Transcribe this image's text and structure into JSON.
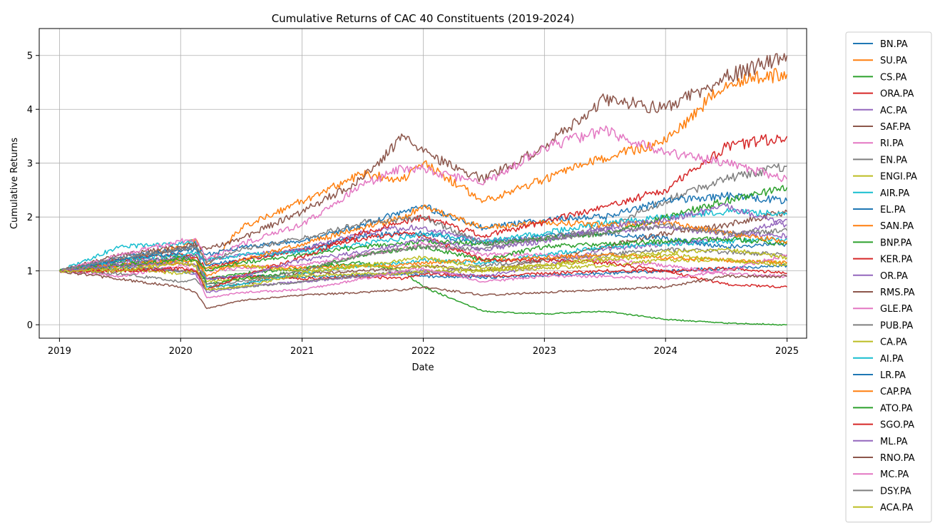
{
  "chart_data": {
    "type": "line",
    "title": "Cumulative Returns of CAC 40 Constituents (2019-2024)",
    "xlabel": "Date",
    "ylabel": "Cumulative Returns",
    "xlim": [
      "2018-11-01",
      "2025-03-01"
    ],
    "ylim": [
      -0.25,
      5.5
    ],
    "x_ticks": [
      "2019-01-01",
      "2020-01-01",
      "2021-01-01",
      "2022-01-01",
      "2023-01-01",
      "2024-01-01",
      "2025-01-01"
    ],
    "x_tick_labels": [
      "2019",
      "2020",
      "2021",
      "2022",
      "2023",
      "2024",
      "2025"
    ],
    "y_ticks": [
      0,
      1,
      2,
      3,
      4,
      5
    ],
    "grid": true,
    "legend_position": "outside-right",
    "x": [
      "2019-01-01",
      "2019-07-01",
      "2020-01-01",
      "2020-02-15",
      "2020-03-20",
      "2020-07-01",
      "2021-01-01",
      "2021-07-01",
      "2021-11-01",
      "2022-01-01",
      "2022-07-01",
      "2023-01-01",
      "2023-07-01",
      "2024-01-01",
      "2024-07-01",
      "2025-01-01"
    ],
    "series": [
      {
        "name": "BN.PA",
        "color": "#1f77b4",
        "values": [
          1.0,
          1.05,
          1.0,
          0.95,
          0.85,
          0.9,
          0.88,
          0.92,
          0.95,
          0.9,
          0.88,
          0.92,
          0.95,
          1.0,
          1.05,
          1.1
        ]
      },
      {
        "name": "SU.PA",
        "color": "#ff7f0e",
        "values": [
          1.0,
          1.2,
          1.45,
          1.6,
          1.1,
          1.8,
          2.3,
          2.8,
          2.7,
          3.0,
          2.3,
          2.7,
          3.1,
          3.4,
          4.5,
          4.65
        ]
      },
      {
        "name": "CS.PA",
        "color": "#2ca02c",
        "values": [
          1.0,
          1.15,
          1.25,
          1.3,
          0.85,
          0.95,
          1.05,
          1.15,
          1.0,
          0.7,
          0.25,
          0.2,
          0.25,
          0.1,
          0.03,
          0.0
        ]
      },
      {
        "name": "ORA.PA",
        "color": "#d62728",
        "values": [
          1.0,
          1.0,
          1.0,
          1.0,
          0.85,
          0.9,
          0.85,
          0.9,
          0.85,
          0.95,
          0.9,
          0.95,
          1.0,
          1.0,
          1.05,
          0.95
        ]
      },
      {
        "name": "AC.PA",
        "color": "#9467bd",
        "values": [
          1.0,
          1.1,
          1.0,
          0.95,
          0.6,
          0.7,
          0.8,
          0.9,
          0.95,
          1.0,
          0.9,
          1.1,
          1.4,
          1.5,
          1.6,
          1.95
        ]
      },
      {
        "name": "SAF.PA",
        "color": "#8c564b",
        "values": [
          1.0,
          1.2,
          1.4,
          1.5,
          0.7,
          0.75,
          0.95,
          1.0,
          1.05,
          1.1,
          1.0,
          1.2,
          1.45,
          1.7,
          1.85,
          2.1
        ]
      },
      {
        "name": "RI.PA",
        "color": "#e377c2",
        "values": [
          1.0,
          1.1,
          1.2,
          1.2,
          1.0,
          1.05,
          1.1,
          1.3,
          1.4,
          1.5,
          1.3,
          1.3,
          1.2,
          1.1,
          0.95,
          0.9
        ]
      },
      {
        "name": "EN.PA",
        "color": "#7f7f7f",
        "values": [
          1.0,
          0.95,
          0.8,
          0.85,
          0.65,
          0.7,
          0.8,
          0.9,
          1.0,
          0.95,
          1.1,
          1.2,
          1.3,
          1.4,
          1.35,
          1.3
        ]
      },
      {
        "name": "ENGI.PA",
        "color": "#bcbd22",
        "values": [
          1.0,
          1.1,
          1.15,
          1.2,
          0.8,
          0.85,
          0.9,
          0.95,
          0.95,
          1.0,
          1.0,
          1.05,
          1.1,
          1.2,
          1.2,
          1.15
        ]
      },
      {
        "name": "AIR.PA",
        "color": "#17becf",
        "values": [
          1.0,
          1.45,
          1.5,
          1.55,
          0.7,
          0.75,
          0.95,
          1.1,
          1.15,
          1.2,
          1.15,
          1.3,
          1.45,
          1.5,
          1.55,
          1.6
        ]
      },
      {
        "name": "EL.PA",
        "color": "#1f77b4",
        "values": [
          1.0,
          1.25,
          1.4,
          1.45,
          1.1,
          1.2,
          1.4,
          1.65,
          1.7,
          1.7,
          1.5,
          1.65,
          1.7,
          1.6,
          1.45,
          1.5
        ]
      },
      {
        "name": "SAN.PA",
        "color": "#ff7f0e",
        "values": [
          1.0,
          1.1,
          1.15,
          1.1,
          1.05,
          1.1,
          1.05,
          1.1,
          1.1,
          1.15,
          1.2,
          1.25,
          1.3,
          1.25,
          1.2,
          1.15
        ]
      },
      {
        "name": "BNP.PA",
        "color": "#2ca02c",
        "values": [
          1.0,
          1.1,
          1.25,
          1.2,
          0.75,
          0.85,
          1.0,
          1.3,
          1.4,
          1.45,
          1.2,
          1.45,
          1.5,
          1.55,
          1.6,
          1.5
        ]
      },
      {
        "name": "KER.PA",
        "color": "#d62728",
        "values": [
          1.0,
          1.2,
          1.3,
          1.25,
          1.05,
          1.2,
          1.4,
          1.6,
          1.7,
          1.65,
          1.2,
          1.2,
          1.15,
          1.0,
          0.75,
          0.7
        ]
      },
      {
        "name": "OR.PA",
        "color": "#9467bd",
        "values": [
          1.0,
          1.15,
          1.25,
          1.3,
          1.2,
          1.3,
          1.4,
          1.7,
          1.8,
          1.8,
          1.55,
          1.6,
          1.75,
          1.8,
          1.7,
          1.65
        ]
      },
      {
        "name": "RMS.PA",
        "color": "#8c564b",
        "values": [
          1.0,
          1.3,
          1.45,
          1.5,
          1.4,
          1.6,
          2.1,
          2.7,
          3.5,
          3.2,
          2.7,
          3.3,
          4.2,
          4.0,
          4.6,
          5.0
        ]
      },
      {
        "name": "GLE.PA",
        "color": "#e377c2",
        "values": [
          1.0,
          0.9,
          1.1,
          1.0,
          0.5,
          0.6,
          0.65,
          0.85,
          1.0,
          1.05,
          0.8,
          0.9,
          0.9,
          0.85,
          1.0,
          1.3
        ]
      },
      {
        "name": "PUB.PA",
        "color": "#7f7f7f",
        "values": [
          1.0,
          1.1,
          1.0,
          1.0,
          0.75,
          0.8,
          1.0,
          1.3,
          1.4,
          1.45,
          1.4,
          1.6,
          1.8,
          2.3,
          2.7,
          2.95
        ]
      },
      {
        "name": "CA.PA",
        "color": "#bcbd22",
        "values": [
          1.0,
          1.05,
          0.95,
          1.0,
          1.05,
          1.1,
          1.0,
          1.1,
          1.05,
          1.1,
          1.0,
          1.1,
          1.2,
          1.3,
          1.2,
          1.1
        ]
      },
      {
        "name": "AI.PA",
        "color": "#17becf",
        "values": [
          1.0,
          1.2,
          1.3,
          1.35,
          1.2,
          1.3,
          1.35,
          1.5,
          1.6,
          1.7,
          1.55,
          1.7,
          1.9,
          2.0,
          2.1,
          2.05
        ]
      },
      {
        "name": "LR.PA",
        "color": "#1f77b4",
        "values": [
          1.0,
          1.2,
          1.35,
          1.4,
          1.3,
          1.45,
          1.55,
          1.85,
          2.1,
          2.2,
          1.8,
          1.95,
          2.0,
          2.3,
          2.4,
          2.3
        ]
      },
      {
        "name": "CAP.PA",
        "color": "#ff7f0e",
        "values": [
          1.0,
          1.1,
          1.2,
          1.2,
          0.9,
          1.2,
          1.5,
          1.8,
          2.0,
          2.2,
          1.8,
          1.9,
          1.85,
          1.9,
          1.7,
          1.55
        ]
      },
      {
        "name": "ATO.PA",
        "color": "#2ca02c",
        "values": [
          1.0,
          1.1,
          1.2,
          1.2,
          1.0,
          1.15,
          1.3,
          1.45,
          1.5,
          1.55,
          1.5,
          1.6,
          1.7,
          2.0,
          2.3,
          2.55
        ]
      },
      {
        "name": "SGO.PA",
        "color": "#d62728",
        "values": [
          1.0,
          1.0,
          1.05,
          1.0,
          0.65,
          0.9,
          1.25,
          1.7,
          1.9,
          2.0,
          1.65,
          1.9,
          2.2,
          2.5,
          3.3,
          3.5
        ]
      },
      {
        "name": "ML.PA",
        "color": "#9467bd",
        "values": [
          1.0,
          1.1,
          1.15,
          1.1,
          0.85,
          0.9,
          1.2,
          1.35,
          1.5,
          1.6,
          1.4,
          1.55,
          1.8,
          1.95,
          2.2,
          1.85
        ]
      },
      {
        "name": "RNO.PA",
        "color": "#8c564b",
        "values": [
          1.0,
          0.85,
          0.7,
          0.6,
          0.3,
          0.45,
          0.55,
          0.6,
          0.65,
          0.7,
          0.55,
          0.6,
          0.65,
          0.7,
          0.9,
          0.9
        ]
      },
      {
        "name": "MC.PA",
        "color": "#e377c2",
        "values": [
          1.0,
          1.3,
          1.55,
          1.6,
          1.2,
          1.5,
          1.85,
          2.6,
          2.9,
          2.9,
          2.6,
          3.3,
          3.6,
          3.2,
          3.0,
          2.7
        ]
      },
      {
        "name": "DSY.PA",
        "color": "#7f7f7f",
        "values": [
          1.0,
          1.25,
          1.4,
          1.45,
          1.15,
          1.4,
          1.6,
          1.9,
          1.95,
          2.0,
          1.5,
          1.6,
          1.7,
          1.85,
          1.7,
          1.75
        ]
      },
      {
        "name": "ACA.PA",
        "color": "#bcbd22",
        "values": [
          1.0,
          1.0,
          1.15,
          1.1,
          0.65,
          0.7,
          0.95,
          1.1,
          1.2,
          1.25,
          1.05,
          1.1,
          1.25,
          1.35,
          1.4,
          1.25
        ]
      }
    ]
  }
}
